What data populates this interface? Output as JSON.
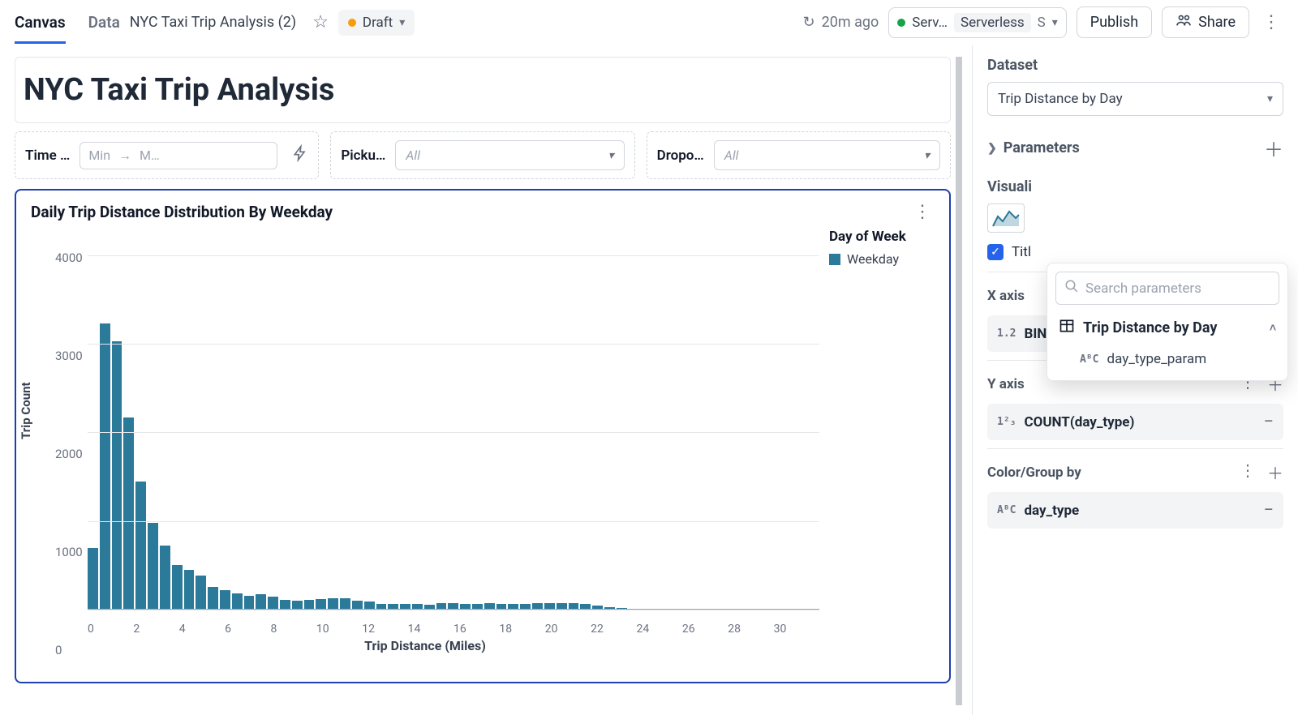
{
  "topbar": {
    "tabs": {
      "canvas": "Canvas",
      "data": "Data",
      "active": "canvas"
    },
    "doc_title": "NYC Taxi Trip Analysis (2)",
    "draft_label": "Draft",
    "refresh_label": "20m ago",
    "compute": {
      "status_label": "Serv…",
      "type_label": "Serverless",
      "size": "S"
    },
    "publish_label": "Publish",
    "share_label": "Share"
  },
  "canvas": {
    "page_title": "NYC Taxi Trip Analysis",
    "filters": {
      "time": {
        "label": "Time …",
        "min_placeholder": "Min",
        "max_placeholder": "M…"
      },
      "pickup": {
        "label": "Picku…",
        "placeholder": "All"
      },
      "dropoff": {
        "label": "Dropo…",
        "placeholder": "All"
      }
    },
    "chart": {
      "type": "histogram",
      "title": "Daily Trip Distance Distribution By Weekday",
      "x_axis_title": "Trip Distance (Miles)",
      "y_axis_title": "Trip Count",
      "legend_title": "Day of Week",
      "legend_items": [
        {
          "label": "Weekday",
          "color": "#2b7a99"
        }
      ],
      "bar_color": "#2b7a99",
      "grid_color": "#e5e7eb",
      "baseline_color": "#9ca3af",
      "y_ticks": [
        0,
        1000,
        2000,
        3000,
        4000
      ],
      "y_max": 4300,
      "x_tick_step": 2,
      "x_tick_count": 16,
      "x_max": 30,
      "bins": [
        700,
        3230,
        3030,
        2170,
        1450,
        980,
        720,
        500,
        450,
        380,
        260,
        220,
        180,
        160,
        170,
        150,
        110,
        100,
        110,
        120,
        130,
        130,
        100,
        90,
        60,
        60,
        60,
        60,
        55,
        70,
        70,
        60,
        65,
        70,
        60,
        60,
        60,
        75,
        75,
        70,
        70,
        65,
        50,
        30,
        20,
        5,
        3,
        2,
        2,
        2,
        2,
        2,
        2,
        2,
        2,
        2,
        2,
        2,
        2,
        2,
        2
      ]
    }
  },
  "right_panel": {
    "dataset_section": "Dataset",
    "dataset_selected": "Trip Distance by Day",
    "parameters_label": "Parameters",
    "visualization_label": "Visuali",
    "title_checkbox_label": "Titl",
    "x_axis": {
      "label": "X axis",
      "type_badge": "1.2",
      "field": "BIN(trip_distance)"
    },
    "y_axis": {
      "label": "Y axis",
      "type_badge": "1²₃",
      "field": "COUNT(day_type)"
    },
    "color_group": {
      "label": "Color/Group by",
      "type_badge": "AᴮC",
      "field": "day_type"
    }
  },
  "popover": {
    "search_placeholder": "Search parameters",
    "group_label": "Trip Distance by Day",
    "item_type_badge": "AᴮC",
    "item_label": "day_type_param"
  },
  "colors": {
    "accent_blue": "#2563eb",
    "border_blue": "#1e40af",
    "draft_dot": "#f59e0b",
    "status_green": "#16a34a",
    "bar_fill": "#2b7a99"
  }
}
